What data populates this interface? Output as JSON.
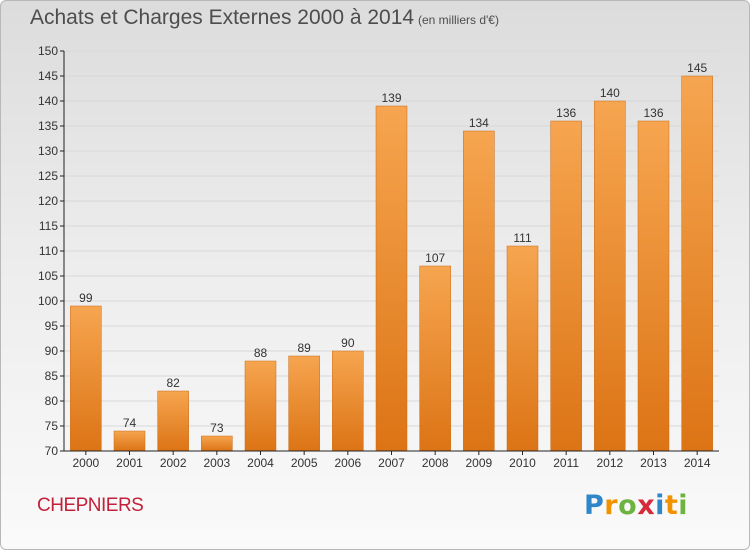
{
  "header": {
    "title": "Achats et Charges Externes 2000 à 2014",
    "subtitle": "(en milliers d'€)"
  },
  "footer": {
    "town": "CHEPNIERS",
    "logo_letters": [
      "P",
      "r",
      "o",
      "x",
      "i",
      "t",
      "i"
    ]
  },
  "colors": {
    "bar_top": "#f6a550",
    "bar_bottom": "#dc7415",
    "axis": "#222222",
    "grid": "#d8d8d8",
    "town": "#c4203a"
  },
  "chart_data": {
    "type": "bar",
    "title": "Achats et Charges Externes 2000 à 2014",
    "subtitle": "(en milliers d'€)",
    "xlabel": "",
    "ylabel": "",
    "categories": [
      "2000",
      "2001",
      "2002",
      "2003",
      "2004",
      "2005",
      "2006",
      "2007",
      "2008",
      "2009",
      "2010",
      "2011",
      "2012",
      "2013",
      "2014"
    ],
    "values": [
      99,
      74,
      82,
      73,
      88,
      89,
      90,
      139,
      107,
      134,
      111,
      136,
      140,
      136,
      145
    ],
    "ylim": [
      70,
      150
    ],
    "yticks": [
      70,
      75,
      80,
      85,
      90,
      95,
      100,
      105,
      110,
      115,
      120,
      125,
      130,
      135,
      140,
      145,
      150
    ],
    "grid": true,
    "legend": "none"
  }
}
